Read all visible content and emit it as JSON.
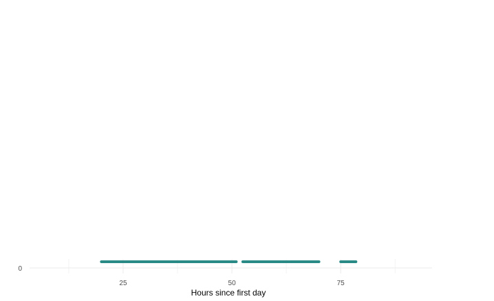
{
  "chart_data": {
    "type": "timeline",
    "title": "",
    "xlabel": "Hours since first day",
    "ylabel": "",
    "xlim": [
      3.5,
      96
    ],
    "x_ticks": [
      25,
      50,
      75
    ],
    "x_minor_ticks": [
      12.5,
      37.5,
      62.5,
      87.5
    ],
    "y_ticks": [
      0
    ],
    "y_value": 0,
    "grid": true,
    "legend": "none",
    "color": "#2a8a86",
    "segments": [
      {
        "start": 20,
        "end": 51
      },
      {
        "start": 52.5,
        "end": 70
      },
      {
        "start": 75,
        "end": 78.5
      }
    ]
  }
}
